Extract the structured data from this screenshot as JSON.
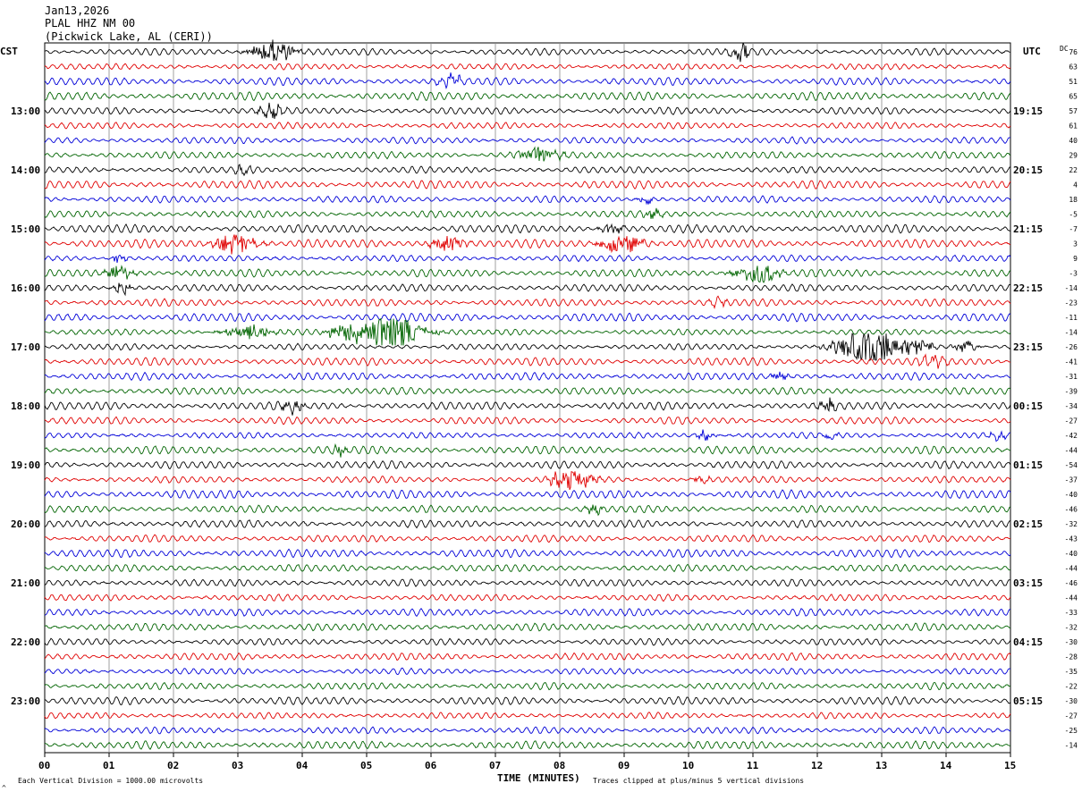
{
  "header": {
    "date": "Jan13,2026",
    "station": "PLAL HHZ NM 00",
    "location": "(Pickwick Lake, AL (CERI))"
  },
  "left_timezone": "CST",
  "right_timezone": "UTC",
  "dc_header": "DC",
  "footer": {
    "scale_note": "Each Vertical Division = 1000.00 microvolts",
    "clip_note": "Traces clipped at plus/minus 5 vertical divisions",
    "corner_mark": "^"
  },
  "colors": {
    "trace_cycle": [
      "#000000",
      "#e00000",
      "#0000d8",
      "#006400"
    ],
    "grid": "#888888",
    "frame": "#000000"
  },
  "chart_data": {
    "type": "line",
    "title": "",
    "xlabel": "TIME (MINUTES)",
    "ylabel": "",
    "xlim": [
      0,
      15
    ],
    "x_ticks": [
      "00",
      "01",
      "02",
      "03",
      "04",
      "05",
      "06",
      "07",
      "08",
      "09",
      "10",
      "11",
      "12",
      "13",
      "14",
      "15"
    ],
    "grid": true,
    "trace_count": 48,
    "left_hour_labels": [
      {
        "trace": 4,
        "label": "13:00"
      },
      {
        "trace": 8,
        "label": "14:00"
      },
      {
        "trace": 12,
        "label": "15:00"
      },
      {
        "trace": 16,
        "label": "16:00"
      },
      {
        "trace": 20,
        "label": "17:00"
      },
      {
        "trace": 24,
        "label": "18:00"
      },
      {
        "trace": 28,
        "label": "19:00"
      },
      {
        "trace": 32,
        "label": "20:00"
      },
      {
        "trace": 36,
        "label": "21:00"
      },
      {
        "trace": 40,
        "label": "22:00"
      },
      {
        "trace": 44,
        "label": "23:00"
      }
    ],
    "right_hour_labels": [
      {
        "trace": 4,
        "label": "19:15"
      },
      {
        "trace": 8,
        "label": "20:15"
      },
      {
        "trace": 12,
        "label": "21:15"
      },
      {
        "trace": 16,
        "label": "22:15"
      },
      {
        "trace": 20,
        "label": "23:15"
      },
      {
        "trace": 24,
        "label": "00:15"
      },
      {
        "trace": 28,
        "label": "01:15"
      },
      {
        "trace": 32,
        "label": "02:15"
      },
      {
        "trace": 36,
        "label": "03:15"
      },
      {
        "trace": 40,
        "label": "04:15"
      },
      {
        "trace": 44,
        "label": "05:15"
      }
    ],
    "dc_offsets": [
      "76",
      "63",
      "51",
      "65",
      "57",
      "61",
      "40",
      "29",
      "22",
      "4",
      "18",
      "-5",
      "-7",
      "3",
      "9",
      "-3",
      "-14",
      "-23",
      "-11",
      "-14",
      "-26",
      "-41",
      "-31",
      "-39",
      "-34",
      "-27",
      "-42",
      "-44",
      "-54",
      "-37",
      "-40",
      "-46",
      "-32",
      "-43",
      "-40",
      "-44",
      "-46",
      "-44",
      "-33",
      "-32",
      "-30",
      "-28",
      "-35",
      "-22",
      "-30",
      "-27",
      "-25",
      "-14"
    ],
    "events": [
      {
        "trace": 0,
        "minute": 3.55,
        "amp": 2.0,
        "dur": 0.5
      },
      {
        "trace": 0,
        "minute": 10.8,
        "amp": 1.6,
        "dur": 0.25
      },
      {
        "trace": 2,
        "minute": 6.3,
        "amp": 1.1,
        "dur": 0.3
      },
      {
        "trace": 4,
        "minute": 3.5,
        "amp": 1.2,
        "dur": 0.3
      },
      {
        "trace": 7,
        "minute": 7.65,
        "amp": 1.4,
        "dur": 0.5
      },
      {
        "trace": 8,
        "minute": 3.1,
        "amp": 0.9,
        "dur": 0.2
      },
      {
        "trace": 10,
        "minute": 9.35,
        "amp": 0.9,
        "dur": 0.2
      },
      {
        "trace": 11,
        "minute": 9.45,
        "amp": 1.1,
        "dur": 0.2
      },
      {
        "trace": 12,
        "minute": 8.8,
        "amp": 1.0,
        "dur": 0.3
      },
      {
        "trace": 13,
        "minute": 2.95,
        "amp": 1.9,
        "dur": 0.5
      },
      {
        "trace": 13,
        "minute": 6.25,
        "amp": 1.7,
        "dur": 0.4
      },
      {
        "trace": 13,
        "minute": 8.95,
        "amp": 1.9,
        "dur": 0.5
      },
      {
        "trace": 14,
        "minute": 1.15,
        "amp": 0.9,
        "dur": 0.2
      },
      {
        "trace": 15,
        "minute": 1.15,
        "amp": 1.5,
        "dur": 0.3
      },
      {
        "trace": 15,
        "minute": 11.05,
        "amp": 2.0,
        "dur": 0.5
      },
      {
        "trace": 16,
        "minute": 1.2,
        "amp": 1.3,
        "dur": 0.2
      },
      {
        "trace": 17,
        "minute": 10.45,
        "amp": 1.0,
        "dur": 0.2
      },
      {
        "trace": 19,
        "minute": 3.2,
        "amp": 1.3,
        "dur": 0.6
      },
      {
        "trace": 19,
        "minute": 4.7,
        "amp": 1.6,
        "dur": 0.5
      },
      {
        "trace": 19,
        "minute": 5.35,
        "amp": 3.0,
        "dur": 0.8
      },
      {
        "trace": 20,
        "minute": 12.8,
        "amp": 3.0,
        "dur": 0.8
      },
      {
        "trace": 20,
        "minute": 13.5,
        "amp": 1.4,
        "dur": 0.4
      },
      {
        "trace": 20,
        "minute": 14.3,
        "amp": 1.0,
        "dur": 0.3
      },
      {
        "trace": 21,
        "minute": 13.8,
        "amp": 1.0,
        "dur": 0.3
      },
      {
        "trace": 22,
        "minute": 11.4,
        "amp": 1.0,
        "dur": 0.2
      },
      {
        "trace": 24,
        "minute": 3.85,
        "amp": 1.3,
        "dur": 0.3
      },
      {
        "trace": 24,
        "minute": 12.15,
        "amp": 1.2,
        "dur": 0.2
      },
      {
        "trace": 26,
        "minute": 10.25,
        "amp": 0.9,
        "dur": 0.2
      },
      {
        "trace": 26,
        "minute": 12.2,
        "amp": 1.0,
        "dur": 0.2
      },
      {
        "trace": 26,
        "minute": 14.8,
        "amp": 0.9,
        "dur": 0.2
      },
      {
        "trace": 27,
        "minute": 4.6,
        "amp": 0.9,
        "dur": 0.2
      },
      {
        "trace": 29,
        "minute": 8.2,
        "amp": 1.8,
        "dur": 0.5
      },
      {
        "trace": 29,
        "minute": 10.2,
        "amp": 0.9,
        "dur": 0.2
      },
      {
        "trace": 31,
        "minute": 8.55,
        "amp": 0.8,
        "dur": 0.2
      }
    ]
  }
}
